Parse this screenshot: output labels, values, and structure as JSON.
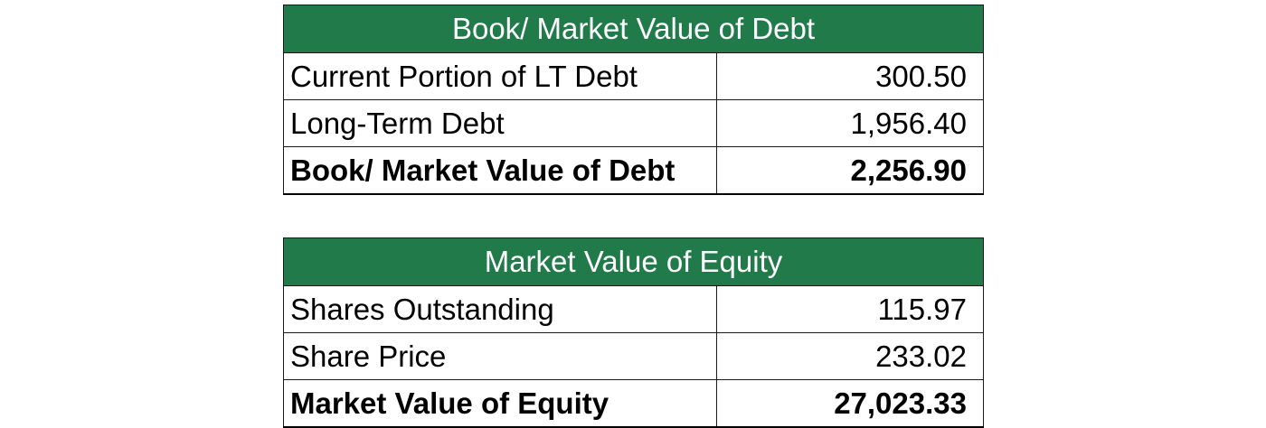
{
  "debt": {
    "header": "Book/ Market Value of Debt",
    "rows": [
      {
        "label": "Current Portion of LT Debt",
        "value": "300.50"
      },
      {
        "label": "Long-Term Debt",
        "value": "1,956.40"
      }
    ],
    "total": {
      "label": "Book/ Market Value of Debt",
      "value": "2,256.90"
    }
  },
  "equity": {
    "header": "Market Value of Equity",
    "rows": [
      {
        "label": "Shares Outstanding",
        "value": "115.97"
      },
      {
        "label": "Share Price",
        "value": "233.02"
      }
    ],
    "total": {
      "label": "Market Value of Equity",
      "value": "27,023.33"
    }
  },
  "colors": {
    "header_background": "#217a4a",
    "header_text": "#ffffff",
    "border": "#1a1a1a"
  }
}
